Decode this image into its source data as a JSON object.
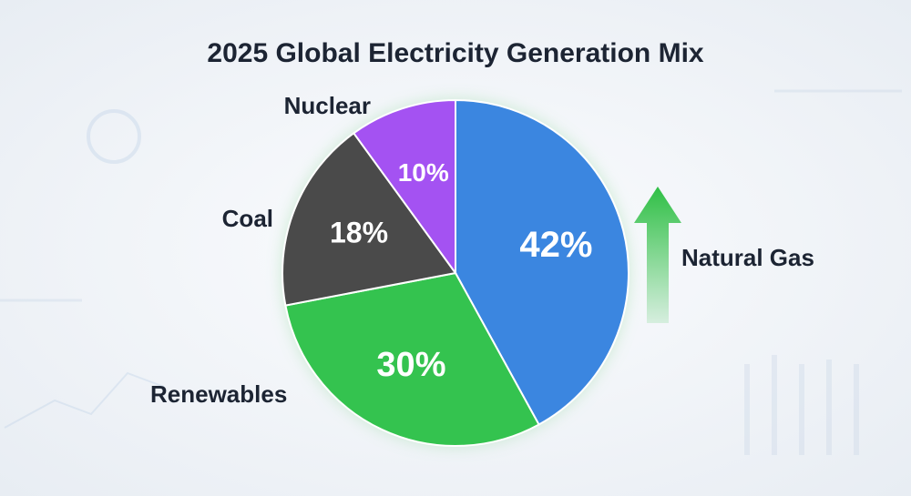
{
  "chart_data": {
    "type": "pie",
    "title": "2025 Global Electricity Generation Mix",
    "categories": [
      "Natural Gas",
      "Renewables",
      "Coal",
      "Nuclear"
    ],
    "values": [
      42,
      30,
      18,
      10
    ],
    "value_labels": [
      "42%",
      "30%",
      "18%",
      "10%"
    ],
    "colors": [
      "#3b86e0",
      "#34c34f",
      "#4a4a4a",
      "#a452f2"
    ]
  }
}
